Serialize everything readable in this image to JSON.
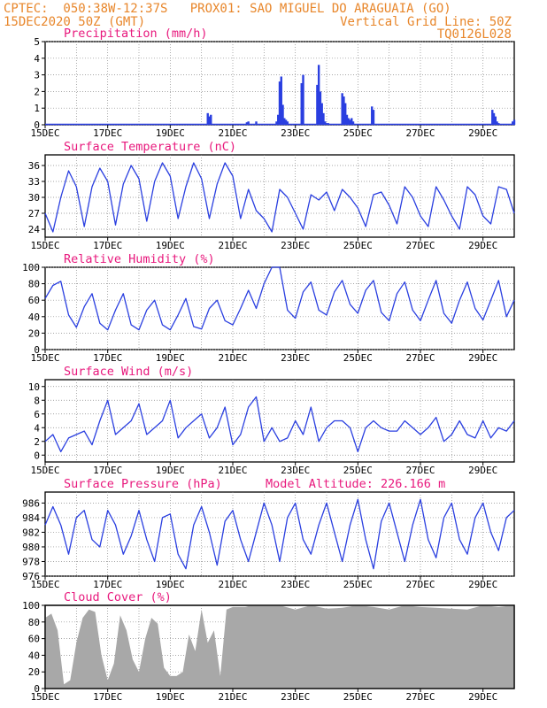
{
  "header": {
    "line1": "CPTEC:  050:38W-12:37S   PROX01: SAO MIGUEL DO ARAGUAIA (GO)",
    "date": "15DEC2020 50Z (GMT)",
    "grid": "Vertical Grid Line: 50Z",
    "code": "TQ0126L028"
  },
  "colors": {
    "header": "#e8862a",
    "title": "#e8197d",
    "line": "#2a3fe0",
    "cloud": "#a8a8a8",
    "grid": "#888888"
  },
  "chart_data": [
    {
      "id": "precip",
      "type": "bar",
      "title": "Precipitation (mm/h)",
      "ylim": [
        0,
        5
      ],
      "yticks": [
        "0",
        "1",
        "2",
        "3",
        "4",
        "5"
      ],
      "xlabels": [
        "15DEC",
        "17DEC",
        "19DEC",
        "21DEC",
        "23DEC",
        "25DEC",
        "27DEC",
        "29DEC"
      ],
      "x": [
        5.2,
        5.25,
        5.3,
        6.45,
        6.5,
        6.75,
        7.4,
        7.45,
        7.5,
        7.55,
        7.6,
        7.65,
        7.7,
        7.75,
        8.2,
        8.25,
        8.7,
        8.75,
        8.8,
        8.85,
        8.9,
        8.95,
        9.0,
        9.05,
        9.5,
        9.55,
        9.6,
        9.65,
        9.7,
        9.75,
        9.8,
        9.85,
        10.45,
        10.5,
        14.3,
        14.35,
        14.4,
        14.45,
        14.5,
        14.95,
        15.0
      ],
      "values": [
        0.7,
        0.5,
        0.6,
        0.15,
        0.2,
        0.2,
        0.2,
        0.6,
        2.6,
        2.9,
        1.2,
        0.4,
        0.3,
        0.2,
        2.5,
        3.0,
        2.4,
        3.6,
        2.0,
        1.3,
        0.7,
        0.2,
        0.1,
        0.1,
        1.9,
        1.7,
        1.3,
        0.6,
        0.4,
        0.3,
        0.4,
        0.2,
        1.1,
        0.9,
        0.9,
        0.7,
        0.5,
        0.2,
        0.1,
        0.2,
        0.3
      ]
    },
    {
      "id": "temp",
      "type": "line",
      "title": "Surface Temperature (nC)",
      "ylim": [
        22.5,
        38
      ],
      "yticks": [
        "24",
        "27",
        "30",
        "33",
        "36"
      ],
      "xlabels": [
        "15DEC",
        "17DEC",
        "19DEC",
        "21DEC",
        "23DEC",
        "25DEC",
        "27DEC",
        "29DEC"
      ],
      "x": [
        0,
        0.25,
        0.5,
        0.75,
        1,
        1.25,
        1.5,
        1.75,
        2,
        2.25,
        2.5,
        2.75,
        3,
        3.25,
        3.5,
        3.75,
        4,
        4.25,
        4.5,
        4.75,
        5,
        5.25,
        5.5,
        5.75,
        6,
        6.25,
        6.5,
        6.75,
        7,
        7.25,
        7.5,
        7.75,
        8,
        8.25,
        8.5,
        8.75,
        9,
        9.25,
        9.5,
        9.75,
        10,
        10.25,
        10.5,
        10.75,
        11,
        11.25,
        11.5,
        11.75,
        12,
        12.25,
        12.5,
        12.75,
        13,
        13.25,
        13.5,
        13.75,
        14,
        14.25,
        14.5,
        14.75,
        15
      ],
      "values": [
        27,
        23.5,
        30,
        35,
        32,
        24.5,
        32,
        35.5,
        33,
        24.8,
        32.5,
        36,
        33.5,
        25.5,
        33,
        36.5,
        34,
        26,
        32,
        36.5,
        33.5,
        26,
        32.5,
        36.5,
        34,
        26,
        31.5,
        27.5,
        26,
        23.5,
        31.5,
        30,
        27,
        24,
        30.5,
        29.5,
        31,
        27.5,
        31.5,
        30,
        28,
        24.5,
        30.5,
        31,
        28.5,
        25,
        32,
        30,
        26.5,
        24.5,
        32,
        29.5,
        26.5,
        24,
        32,
        30.5,
        26.5,
        25,
        32,
        31.5,
        27
      ]
    },
    {
      "id": "rh",
      "type": "line",
      "title": "Relative Humidity (%)",
      "ylim": [
        0,
        100
      ],
      "yticks": [
        "0",
        "20",
        "40",
        "60",
        "80",
        "100"
      ],
      "xlabels": [
        "15DEC",
        "17DEC",
        "19DEC",
        "21DEC",
        "23DEC",
        "25DEC",
        "27DEC",
        "29DEC"
      ],
      "x": [
        0,
        0.25,
        0.5,
        0.75,
        1,
        1.25,
        1.5,
        1.75,
        2,
        2.25,
        2.5,
        2.75,
        3,
        3.25,
        3.5,
        3.75,
        4,
        4.25,
        4.5,
        4.75,
        5,
        5.25,
        5.5,
        5.75,
        6,
        6.25,
        6.5,
        6.75,
        7,
        7.25,
        7.5,
        7.75,
        8,
        8.25,
        8.5,
        8.75,
        9,
        9.25,
        9.5,
        9.75,
        10,
        10.25,
        10.5,
        10.75,
        11,
        11.25,
        11.5,
        11.75,
        12,
        12.25,
        12.5,
        12.75,
        13,
        13.25,
        13.5,
        13.75,
        14,
        14.25,
        14.5,
        14.75,
        15
      ],
      "values": [
        62,
        78,
        83,
        42,
        27,
        52,
        68,
        32,
        24,
        48,
        68,
        30,
        24,
        48,
        60,
        30,
        24,
        42,
        62,
        28,
        25,
        50,
        60,
        35,
        30,
        50,
        72,
        50,
        80,
        100,
        100,
        48,
        38,
        70,
        82,
        48,
        42,
        70,
        84,
        55,
        44,
        72,
        84,
        45,
        35,
        68,
        82,
        48,
        35,
        60,
        84,
        44,
        32,
        60,
        82,
        50,
        36,
        60,
        84,
        40,
        60
      ]
    },
    {
      "id": "wind",
      "type": "line",
      "title": "Surface Wind (m/s)",
      "ylim": [
        -1,
        11
      ],
      "yticks": [
        "0",
        "2",
        "4",
        "6",
        "8",
        "10"
      ],
      "xlabels": [
        "15DEC",
        "17DEC",
        "19DEC",
        "21DEC",
        "23DEC",
        "25DEC",
        "27DEC",
        "29DEC"
      ],
      "x": [
        0,
        0.25,
        0.5,
        0.75,
        1,
        1.25,
        1.5,
        1.75,
        2,
        2.25,
        2.5,
        2.75,
        3,
        3.25,
        3.5,
        3.75,
        4,
        4.25,
        4.5,
        4.75,
        5,
        5.25,
        5.5,
        5.75,
        6,
        6.25,
        6.5,
        6.75,
        7,
        7.25,
        7.5,
        7.75,
        8,
        8.25,
        8.5,
        8.75,
        9,
        9.25,
        9.5,
        9.75,
        10,
        10.25,
        10.5,
        10.75,
        11,
        11.25,
        11.5,
        11.75,
        12,
        12.25,
        12.5,
        12.75,
        13,
        13.25,
        13.5,
        13.75,
        14,
        14.25,
        14.5,
        14.75,
        15
      ],
      "values": [
        2,
        3,
        0.5,
        2.5,
        3,
        3.5,
        1.5,
        5,
        8,
        3,
        4,
        5,
        7.5,
        3,
        4,
        5,
        8,
        2.5,
        4,
        5,
        6,
        2.5,
        4,
        7,
        1.5,
        3,
        7,
        8.5,
        2,
        4,
        2,
        2.5,
        5,
        3,
        7,
        2,
        4,
        5,
        5,
        4,
        0.5,
        4,
        5,
        4,
        3.5,
        3.5,
        5,
        4,
        3,
        4,
        5.5,
        2,
        3,
        5,
        3,
        2.5,
        5,
        2.5,
        4,
        3.5,
        5
      ]
    },
    {
      "id": "pres",
      "type": "line",
      "title": "Surface Pressure (hPa)",
      "annotation": "Model Altitude: 226.166 m",
      "ylim": [
        976,
        987.5
      ],
      "yticks": [
        "976",
        "978",
        "980",
        "982",
        "984",
        "986"
      ],
      "xlabels": [
        "15DEC",
        "17DEC",
        "19DEC",
        "21DEC",
        "23DEC",
        "25DEC",
        "27DEC",
        "29DEC"
      ],
      "x": [
        0,
        0.25,
        0.5,
        0.75,
        1,
        1.25,
        1.5,
        1.75,
        2,
        2.25,
        2.5,
        2.75,
        3,
        3.25,
        3.5,
        3.75,
        4,
        4.25,
        4.5,
        4.75,
        5,
        5.25,
        5.5,
        5.75,
        6,
        6.25,
        6.5,
        6.75,
        7,
        7.25,
        7.5,
        7.75,
        8,
        8.25,
        8.5,
        8.75,
        9,
        9.25,
        9.5,
        9.75,
        10,
        10.25,
        10.5,
        10.75,
        11,
        11.25,
        11.5,
        11.75,
        12,
        12.25,
        12.5,
        12.75,
        13,
        13.25,
        13.5,
        13.75,
        14,
        14.25,
        14.5,
        14.75,
        15
      ],
      "values": [
        983,
        985.5,
        983,
        979,
        984,
        985,
        981,
        980,
        985,
        983,
        979,
        981.5,
        985,
        981,
        978,
        984,
        984.5,
        979,
        977,
        983,
        985.5,
        982,
        977.5,
        983.5,
        985,
        981,
        978,
        982,
        986,
        983,
        978,
        984,
        986,
        981,
        979,
        983,
        986,
        982,
        978,
        983,
        986.5,
        981,
        977,
        983.5,
        986,
        982,
        978,
        983,
        986.5,
        981,
        978.5,
        984,
        986,
        981,
        979,
        984,
        986,
        982,
        979.5,
        984,
        985
      ]
    },
    {
      "id": "cloud",
      "type": "area",
      "title": "Cloud Cover (%)",
      "ylim": [
        0,
        100
      ],
      "yticks": [
        "0",
        "20",
        "40",
        "60",
        "80",
        "100"
      ],
      "xlabels": [
        "15DEC",
        "17DEC",
        "19DEC",
        "21DEC",
        "23DEC",
        "25DEC",
        "27DEC",
        "29DEC"
      ],
      "x": [
        0,
        0.2,
        0.4,
        0.6,
        0.8,
        1.0,
        1.2,
        1.4,
        1.6,
        1.8,
        2.0,
        2.2,
        2.4,
        2.6,
        2.8,
        3.0,
        3.2,
        3.4,
        3.6,
        3.8,
        4.0,
        4.2,
        4.4,
        4.6,
        4.8,
        5.0,
        5.2,
        5.4,
        5.6,
        5.8,
        6.0,
        6.2,
        6.4,
        6.6,
        6.8,
        7.0,
        7.5,
        8.0,
        8.5,
        9.0,
        9.5,
        10.0,
        10.5,
        11.0,
        11.5,
        12.0,
        12.5,
        13.0,
        13.5,
        14.0,
        14.5,
        15.0
      ],
      "values": [
        85,
        90,
        70,
        5,
        10,
        55,
        85,
        95,
        92,
        40,
        10,
        30,
        88,
        70,
        35,
        20,
        60,
        85,
        78,
        25,
        15,
        15,
        20,
        65,
        45,
        95,
        55,
        70,
        15,
        95,
        98,
        98,
        98,
        100,
        100,
        100,
        100,
        95,
        100,
        96,
        97,
        100,
        98,
        95,
        100,
        98,
        97,
        96,
        95,
        100,
        98,
        100
      ]
    }
  ]
}
